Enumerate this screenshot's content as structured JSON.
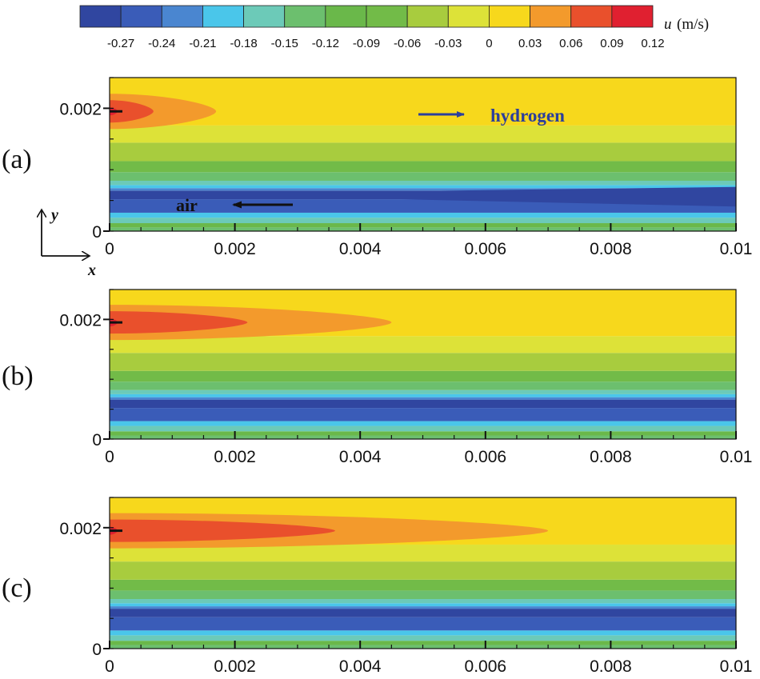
{
  "colorbar": {
    "variable": "u",
    "unit": "(m/s)",
    "colors": [
      "#3046a0",
      "#3a5cb8",
      "#4a86d0",
      "#4ac6ea",
      "#6ccab8",
      "#6cbf6e",
      "#6ab84a",
      "#72bb48",
      "#a8cc3e",
      "#dde238",
      "#f7d81c",
      "#f39a2c",
      "#e9502c",
      "#e02030"
    ],
    "tick_labels": [
      "-0.27",
      "-0.24",
      "-0.21",
      "-0.18",
      "-0.15",
      "-0.12",
      "-0.09",
      "-0.06",
      "-0.03",
      "0",
      "0.03",
      "0.06",
      "0.09",
      "0.12"
    ]
  },
  "chart_data": [
    {
      "type": "heatmap",
      "panel_label": "(a)",
      "variable": "u (m/s)",
      "xlim": [
        0,
        0.01
      ],
      "ylim": [
        0,
        0.0025
      ],
      "x_tick_labels": [
        "0",
        "0.002",
        "0.004",
        "0.006",
        "0.008",
        "0.01"
      ],
      "y_tick_labels": [
        "0",
        "0.002"
      ],
      "hot_core_length": 0.0017,
      "warm_core_length": 0.0007,
      "annotations": [
        {
          "text": "hydrogen",
          "direction": "right"
        },
        {
          "text": "air",
          "direction": "left"
        }
      ],
      "axis_arrows": {
        "x": "x",
        "y": "y"
      }
    },
    {
      "type": "heatmap",
      "panel_label": "(b)",
      "variable": "u (m/s)",
      "xlim": [
        0,
        0.01
      ],
      "ylim": [
        0,
        0.0025
      ],
      "x_tick_labels": [
        "0",
        "0.002",
        "0.004",
        "0.006",
        "0.008",
        "0.01"
      ],
      "y_tick_labels": [
        "0",
        "0.002"
      ],
      "hot_core_length": 0.0045,
      "warm_core_length": 0.0022
    },
    {
      "type": "heatmap",
      "panel_label": "(c)",
      "variable": "u (m/s)",
      "xlim": [
        0,
        0.01
      ],
      "ylim": [
        0,
        0.0025
      ],
      "x_tick_labels": [
        "0",
        "0.002",
        "0.004",
        "0.006",
        "0.008",
        "0.01"
      ],
      "y_tick_labels": [
        "0",
        "0.002"
      ],
      "hot_core_length": 0.007,
      "warm_core_length": 0.0036
    }
  ]
}
